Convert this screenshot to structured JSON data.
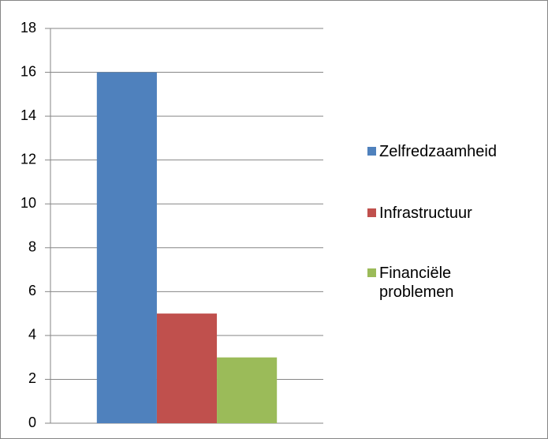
{
  "chart_data": {
    "type": "bar",
    "categories": [
      null
    ],
    "series": [
      {
        "name": "Zelfredzaamheid",
        "color": "#4f81bd",
        "values": [
          16
        ]
      },
      {
        "name": "Infrastructuur",
        "color": "#c0504d",
        "values": [
          5
        ]
      },
      {
        "name": "Financiële problemen",
        "color": "#9bbb59",
        "values": [
          3
        ]
      }
    ],
    "ylim": [
      0,
      18
    ],
    "yticks": [
      0,
      2,
      4,
      6,
      8,
      10,
      12,
      14,
      16,
      18
    ],
    "grid": true,
    "legend": "right"
  }
}
